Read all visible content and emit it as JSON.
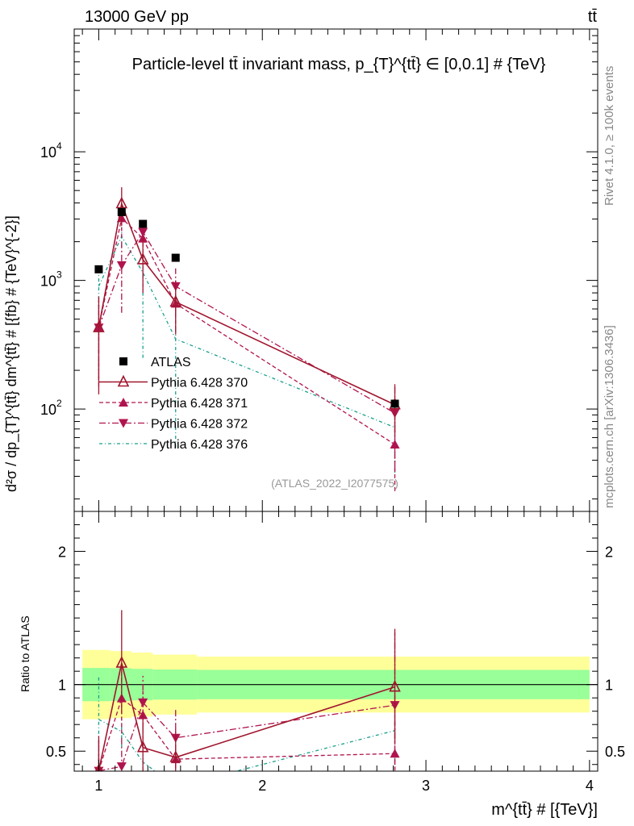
{
  "header": {
    "energy_label": "13000 GeV pp",
    "process_label": "tt̄"
  },
  "side": {
    "rivet_label": "Rivet 4.1.0, ≥ 100k events",
    "mcplots_label": "mcplots.cern.ch [arXiv:1306.3436]"
  },
  "chart_data": {
    "type": "line",
    "title": "Particle-level tt̄ invariant mass, p_{T}^{tt̄} ∈ [0,0.1] # {TeV}",
    "xlabel": "m^{tt̄} # [{TeV}]",
    "ylabel": "d²σ / dp_{T}^{tt̄} dm^{tt̄} # [{fb} # {TeV}^{-2}]",
    "ratio_ylabel": "Ratio to ATLAS",
    "analysis_tag": "(ATLAS_2022_I2077575)",
    "xlim": [
      0.85,
      4.05
    ],
    "ylim": [
      16,
      90000
    ],
    "ratio_ylim": [
      0.35,
      2.3
    ],
    "x_ticks": [
      1,
      2,
      3,
      4
    ],
    "x_tick_labels": [
      "1",
      "2",
      "3",
      "4"
    ],
    "y_ticks": [
      100,
      1000,
      10000
    ],
    "y_tick_base": "10",
    "y_tick_exponents": [
      "2",
      "3",
      "4"
    ],
    "ratio_ticks": [
      0.5,
      1,
      2
    ],
    "ratio_tick_labels": [
      "0.5",
      "1",
      "2"
    ],
    "bin_edges": [
      0.9,
      1.07,
      1.2,
      1.33,
      1.6,
      4.0
    ],
    "x": [
      1.0,
      1.14,
      1.27,
      1.47,
      2.81
    ],
    "band_inner_rel": [
      0.125,
      0.123,
      0.118,
      0.113,
      0.11
    ],
    "band_outer_rel": [
      0.26,
      0.252,
      0.24,
      0.225,
      0.21
    ],
    "legend": [
      "ATLAS",
      "Pythia 6.428 370",
      "Pythia 6.428 371",
      "Pythia 6.428 372",
      "Pythia 6.428 376"
    ],
    "series": [
      {
        "name": "ATLAS",
        "color": "#000000",
        "marker": "square",
        "dash": "",
        "values": [
          1220,
          3400,
          2750,
          1500,
          110
        ]
      },
      {
        "name": "Pythia 6.428 370",
        "color": "#a0162e",
        "marker": "open-triangle-up",
        "dash": "",
        "values": [
          430,
          3950,
          1450,
          680,
          108
        ],
        "err_lo": [
          300,
          1300,
          650,
          300,
          45
        ],
        "err_hi": [
          320,
          1350,
          680,
          320,
          48
        ]
      },
      {
        "name": "Pythia 6.428 371",
        "color": "#b0144e",
        "marker": "triangle-up",
        "dash": "5,3",
        "values": [
          430,
          3050,
          2120,
          660,
          53
        ],
        "err_lo": [
          280,
          900,
          500,
          250,
          30
        ],
        "err_hi": [
          280,
          900,
          500,
          250,
          30
        ]
      },
      {
        "name": "Pythia 6.428 372",
        "color": "#b0144e",
        "marker": "triangle-down",
        "dash": "8,3,2,3",
        "values": [
          430,
          1310,
          2380,
          900,
          93
        ],
        "err_lo": [
          260,
          750,
          550,
          340,
          60
        ],
        "err_hi": [
          260,
          750,
          550,
          340,
          60
        ]
      },
      {
        "name": "Pythia 6.428 376",
        "color": "#19a08c",
        "marker": "none",
        "dash": "4,3,1,3",
        "values": [
          900,
          2200,
          1150,
          350,
          72
        ],
        "err_lo": [
          700,
          400,
          900,
          300,
          40
        ],
        "err_hi": [
          400,
          400,
          600,
          300,
          40
        ]
      }
    ]
  }
}
